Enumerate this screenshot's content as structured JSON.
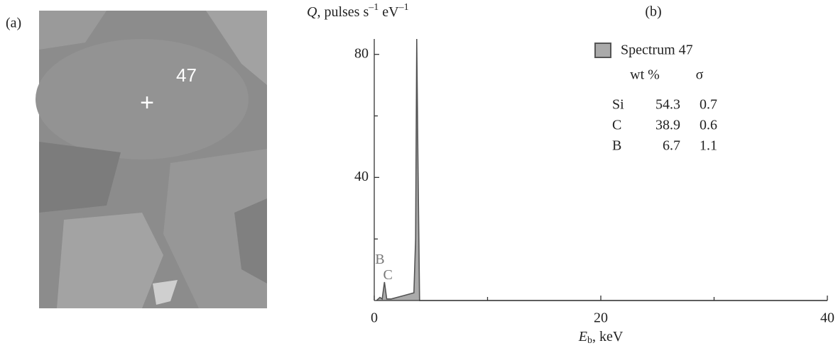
{
  "panel_a": {
    "label": "(a)",
    "marker_label": "47",
    "marker": "+"
  },
  "chart_data": {
    "type": "area",
    "panel_label": "(b)",
    "y_label": {
      "symbol": "Q",
      "text": ", pulses s",
      "exp1": "–1",
      "text2": " eV",
      "exp2": "–1"
    },
    "x_label": {
      "symbol": "E",
      "subscript": "b",
      "unit": ", keV"
    },
    "xlim": [
      0,
      40
    ],
    "xticks": [
      0,
      20,
      40
    ],
    "xminor": [
      10,
      30
    ],
    "ylim": [
      0,
      85
    ],
    "yticks": [
      40,
      80
    ],
    "yminor": [
      20,
      60
    ],
    "series": [
      {
        "name": "Spectrum 47",
        "color": "#555555",
        "fill": "#aaaaaa",
        "x": [
          0.2,
          0.5,
          0.7,
          0.9,
          1.1,
          1.5,
          2.5,
          3.5,
          3.65,
          3.75,
          3.85,
          4.0,
          5,
          40
        ],
        "values": [
          0,
          1,
          0.5,
          6,
          0.5,
          0.5,
          1.5,
          2.5,
          20,
          85,
          48,
          0,
          0,
          0
        ]
      }
    ],
    "annotations": [
      {
        "text": "B",
        "x": 0.5,
        "y": 13
      },
      {
        "text": "C",
        "x": 1.2,
        "y": 8
      }
    ],
    "table": {
      "columns": [
        "wt %",
        "σ"
      ],
      "rows": [
        [
          "Si",
          54.3,
          0.7
        ],
        [
          "C",
          38.9,
          0.6
        ],
        [
          "B",
          6.7,
          1.1
        ]
      ]
    }
  }
}
